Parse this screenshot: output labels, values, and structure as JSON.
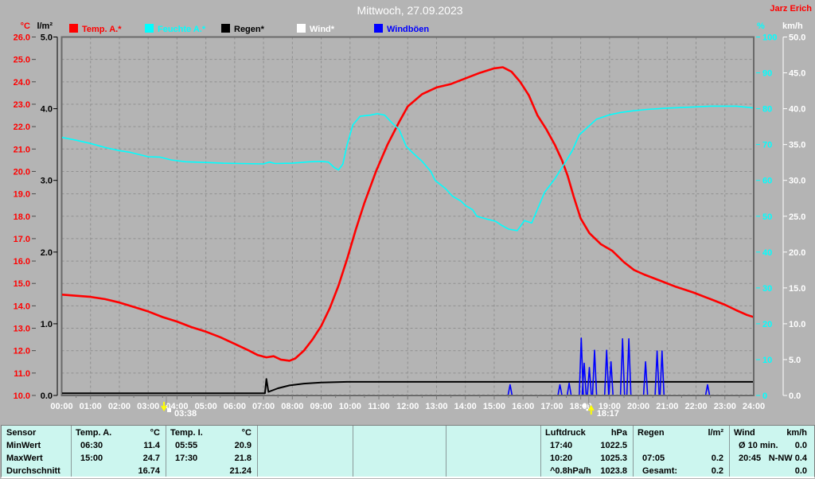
{
  "window": {
    "title": "Mittwoch, 27.09.2023",
    "station": "Jarz Erich",
    "bg_color": "#b4b4b4"
  },
  "legend": [
    {
      "label": "Temp. A.*",
      "color": "#ff0000"
    },
    {
      "label": "Feuchte A.*",
      "color": "#00ffff"
    },
    {
      "label": "Regen*",
      "color": "#000000"
    },
    {
      "label": "Wind*",
      "color": "#ffffff"
    },
    {
      "label": "Windböen",
      "color": "#0000ff"
    }
  ],
  "axes": {
    "temp": {
      "unit": "°C",
      "color": "#ff0000",
      "ticks": [
        "26.0",
        "25.0",
        "24.0",
        "23.0",
        "22.0",
        "21.0",
        "20.0",
        "19.0",
        "18.0",
        "17.0",
        "16.0",
        "15.0",
        "14.0",
        "13.0",
        "12.0",
        "11.0",
        "10.0"
      ]
    },
    "rain": {
      "unit": "l/m²",
      "color": "#000000",
      "ticks": [
        "5.0",
        "4.0",
        "3.0",
        "2.0",
        "1.0",
        "0.0"
      ]
    },
    "humidity": {
      "unit": "%",
      "color": "#00ffff",
      "ticks": [
        "100",
        "90",
        "80",
        "70",
        "60",
        "50",
        "40",
        "30",
        "20",
        "10",
        "0"
      ]
    },
    "wind": {
      "unit": "km/h",
      "color": "#ffffff",
      "ticks": [
        "50.0",
        "45.0",
        "40.0",
        "35.0",
        "30.0",
        "25.0",
        "20.0",
        "15.0",
        "10.0",
        "5.0",
        "0.0"
      ]
    }
  },
  "x_axis": {
    "labels": [
      "00:00",
      "01:00",
      "02:00",
      "03:00",
      "04:00",
      "05:00",
      "06:00",
      "07:00",
      "08:00",
      "09:00",
      "10:00",
      "11:00",
      "12:00",
      "13:00",
      "14:00",
      "15:00",
      "16:00",
      "17:00",
      "18:00",
      "19:00",
      "20:00",
      "21:00",
      "22:00",
      "23:00",
      "24:00"
    ]
  },
  "markers": [
    {
      "time": "03:38",
      "hour": 3.63,
      "dir": "down"
    },
    {
      "time": "18:17",
      "hour": 18.28,
      "dir": "up"
    }
  ],
  "chart_data": {
    "type": "line",
    "title": "Mittwoch, 27.09.2023",
    "x_unit": "hour_of_day",
    "x_range": [
      0,
      24
    ],
    "grid": true,
    "series": [
      {
        "name": "Temp. A.",
        "unit": "°C",
        "color": "#ff0000",
        "width": 2.6,
        "axis_range": [
          10,
          26
        ],
        "points": [
          [
            0,
            14.5
          ],
          [
            0.5,
            14.45
          ],
          [
            1,
            14.4
          ],
          [
            1.5,
            14.3
          ],
          [
            2,
            14.15
          ],
          [
            2.5,
            13.95
          ],
          [
            3,
            13.75
          ],
          [
            3.5,
            13.5
          ],
          [
            4,
            13.3
          ],
          [
            4.5,
            13.05
          ],
          [
            5,
            12.85
          ],
          [
            5.5,
            12.6
          ],
          [
            6,
            12.3
          ],
          [
            6.5,
            12.0
          ],
          [
            6.8,
            11.8
          ],
          [
            7.1,
            11.7
          ],
          [
            7.35,
            11.75
          ],
          [
            7.6,
            11.6
          ],
          [
            7.9,
            11.55
          ],
          [
            8.1,
            11.65
          ],
          [
            8.4,
            12.0
          ],
          [
            8.7,
            12.5
          ],
          [
            9,
            13.1
          ],
          [
            9.3,
            13.9
          ],
          [
            9.6,
            14.9
          ],
          [
            9.9,
            16.1
          ],
          [
            10.2,
            17.4
          ],
          [
            10.5,
            18.6
          ],
          [
            10.9,
            20.0
          ],
          [
            11.3,
            21.2
          ],
          [
            11.7,
            22.2
          ],
          [
            12,
            22.9
          ],
          [
            12.5,
            23.45
          ],
          [
            13,
            23.75
          ],
          [
            13.5,
            23.9
          ],
          [
            14,
            24.15
          ],
          [
            14.5,
            24.4
          ],
          [
            15,
            24.6
          ],
          [
            15.3,
            24.65
          ],
          [
            15.6,
            24.45
          ],
          [
            15.9,
            24.0
          ],
          [
            16.2,
            23.4
          ],
          [
            16.5,
            22.5
          ],
          [
            16.8,
            21.9
          ],
          [
            17.1,
            21.2
          ],
          [
            17.35,
            20.5
          ],
          [
            17.55,
            19.8
          ],
          [
            17.75,
            18.9
          ],
          [
            18,
            17.9
          ],
          [
            18.3,
            17.25
          ],
          [
            18.7,
            16.75
          ],
          [
            19.1,
            16.45
          ],
          [
            19.5,
            15.95
          ],
          [
            19.85,
            15.6
          ],
          [
            20.2,
            15.4
          ],
          [
            20.8,
            15.1
          ],
          [
            21.3,
            14.85
          ],
          [
            21.9,
            14.6
          ],
          [
            22.5,
            14.3
          ],
          [
            23,
            14.05
          ],
          [
            23.4,
            13.8
          ],
          [
            23.75,
            13.6
          ],
          [
            24,
            13.5
          ]
        ]
      },
      {
        "name": "Feuchte A.",
        "unit": "%",
        "color": "#00ffff",
        "width": 1.6,
        "axis_range": [
          0,
          100
        ],
        "points": [
          [
            0,
            72
          ],
          [
            0.5,
            71.2
          ],
          [
            1,
            70.3
          ],
          [
            1.5,
            69.2
          ],
          [
            2,
            68.3
          ],
          [
            2.4,
            67.8
          ],
          [
            3,
            66.6
          ],
          [
            3.4,
            66.5
          ],
          [
            3.8,
            65.7
          ],
          [
            4.3,
            65.2
          ],
          [
            5,
            65
          ],
          [
            5.6,
            64.8
          ],
          [
            6.2,
            64.7
          ],
          [
            7,
            64.6
          ],
          [
            7.2,
            65.1
          ],
          [
            7.4,
            64.7
          ],
          [
            8,
            64.8
          ],
          [
            8.6,
            65.2
          ],
          [
            9,
            65.3
          ],
          [
            9.25,
            65.1
          ],
          [
            9.45,
            63.6
          ],
          [
            9.6,
            62.9
          ],
          [
            9.75,
            64.5
          ],
          [
            9.9,
            70
          ],
          [
            10.1,
            75.5
          ],
          [
            10.35,
            77.9
          ],
          [
            10.7,
            78.2
          ],
          [
            10.95,
            78.6
          ],
          [
            11.2,
            78.2
          ],
          [
            11.45,
            76.1
          ],
          [
            11.7,
            74.2
          ],
          [
            11.95,
            69.5
          ],
          [
            12.2,
            67.5
          ],
          [
            12.5,
            65.3
          ],
          [
            12.8,
            62.5
          ],
          [
            12.95,
            60
          ],
          [
            13.3,
            57.8
          ],
          [
            13.55,
            55.6
          ],
          [
            13.85,
            54.2
          ],
          [
            14,
            53
          ],
          [
            14.25,
            51.8
          ],
          [
            14.4,
            50
          ],
          [
            14.75,
            49.2
          ],
          [
            15.05,
            48.6
          ],
          [
            15.25,
            47.5
          ],
          [
            15.5,
            46.4
          ],
          [
            15.8,
            46
          ],
          [
            16.05,
            48.8
          ],
          [
            16.3,
            48.1
          ],
          [
            16.75,
            56.7
          ],
          [
            17.1,
            60.4
          ],
          [
            17.4,
            64.2
          ],
          [
            17.7,
            68.2
          ],
          [
            17.95,
            72.7
          ],
          [
            18.25,
            74.9
          ],
          [
            18.55,
            77.1
          ],
          [
            19,
            78.3
          ],
          [
            19.35,
            78.9
          ],
          [
            19.8,
            79.4
          ],
          [
            20.3,
            79.8
          ],
          [
            20.9,
            80.1
          ],
          [
            21.7,
            80.4
          ],
          [
            22.5,
            80.7
          ],
          [
            23.4,
            80.7
          ],
          [
            24,
            80.2
          ]
        ]
      },
      {
        "name": "Regen",
        "unit": "l/m²",
        "color": "#000000",
        "width": 2,
        "axis_range": [
          0,
          5
        ],
        "points": [
          [
            0,
            0.03
          ],
          [
            7.05,
            0.03
          ],
          [
            7.1,
            0.23
          ],
          [
            7.17,
            0.05
          ],
          [
            7.5,
            0.1
          ],
          [
            7.9,
            0.14
          ],
          [
            8.4,
            0.165
          ],
          [
            9,
            0.18
          ],
          [
            9.9,
            0.19
          ],
          [
            24,
            0.19
          ]
        ]
      },
      {
        "name": "Wind",
        "unit": "km/h",
        "color": "#ffffff",
        "width": 1.2,
        "style": "dashed",
        "axis_range": [
          0,
          50
        ],
        "points": [
          [
            7.05,
            0.07
          ],
          [
            24,
            0.07
          ]
        ]
      },
      {
        "name": "Windböen",
        "unit": "km/h",
        "color": "#0000ff",
        "width": 1.6,
        "axis_range": [
          0,
          50
        ],
        "spikes": [
          [
            15.55,
            1.5
          ],
          [
            17.28,
            1.5
          ],
          [
            17.6,
            1.7
          ],
          [
            18.02,
            8.0
          ],
          [
            18.12,
            4.5
          ],
          [
            18.3,
            3.9
          ],
          [
            18.48,
            6.3
          ],
          [
            18.9,
            6.3
          ],
          [
            19.05,
            4.7
          ],
          [
            19.45,
            7.9
          ],
          [
            19.67,
            7.9
          ],
          [
            20.25,
            4.7
          ],
          [
            20.65,
            6.2
          ],
          [
            20.82,
            6.2
          ],
          [
            22.4,
            1.5
          ]
        ]
      }
    ]
  },
  "table": {
    "row_labels": [
      "Sensor",
      "MinWert",
      "MaxWert",
      "Durchschnitt"
    ],
    "columns": [
      {
        "header": "Temp. A.",
        "unit": "°C",
        "rows": [
          [
            "06:30",
            "11.4"
          ],
          [
            "15:00",
            "24.7"
          ],
          [
            "",
            "16.74"
          ]
        ]
      },
      {
        "header": "Temp. I.",
        "unit": "°C",
        "rows": [
          [
            "05:55",
            "20.9"
          ],
          [
            "17:30",
            "21.8"
          ],
          [
            "",
            "21.24"
          ]
        ]
      },
      {
        "header": "",
        "unit": "",
        "rows": [
          [
            "",
            ""
          ],
          [
            "",
            ""
          ],
          [
            "",
            ""
          ]
        ]
      },
      {
        "header": "",
        "unit": "",
        "rows": [
          [
            "",
            ""
          ],
          [
            "",
            ""
          ],
          [
            "",
            ""
          ]
        ]
      },
      {
        "header": "",
        "unit": "",
        "rows": [
          [
            "",
            ""
          ],
          [
            "",
            ""
          ],
          [
            "",
            ""
          ]
        ]
      },
      {
        "header": "Luftdruck",
        "unit": "hPa",
        "rows": [
          [
            "17:40",
            "1022.5"
          ],
          [
            "10:20",
            "1025.3"
          ],
          [
            "^0.8hPa/h",
            "1023.8"
          ]
        ]
      },
      {
        "header": "Regen",
        "unit": "l/m²",
        "rows": [
          [
            "",
            ""
          ],
          [
            "07:05",
            "0.2"
          ],
          [
            "Gesamt:",
            "0.2"
          ]
        ]
      },
      {
        "header": "Wind",
        "unit": "km/h",
        "rows": [
          [
            "Ø 10 min.",
            "0.0"
          ],
          [
            "20:45",
            "N-NW 0.4"
          ],
          [
            "",
            "0.0"
          ]
        ]
      }
    ]
  }
}
